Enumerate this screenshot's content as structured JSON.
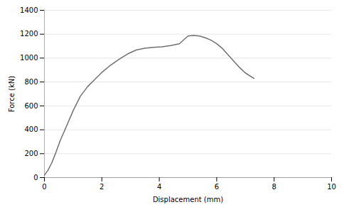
{
  "chart_data": {
    "type": "line",
    "x": [
      0,
      0.12,
      0.25,
      0.4,
      0.55,
      0.75,
      1.0,
      1.25,
      1.5,
      1.75,
      2.0,
      2.3,
      2.6,
      2.9,
      3.2,
      3.5,
      3.8,
      4.1,
      4.4,
      4.7,
      5.0,
      5.2,
      5.4,
      5.6,
      5.8,
      6.0,
      6.2,
      6.5,
      6.8,
      7.0,
      7.3
    ],
    "values": [
      20,
      60,
      120,
      210,
      310,
      420,
      560,
      680,
      760,
      820,
      880,
      940,
      990,
      1035,
      1068,
      1082,
      1090,
      1095,
      1105,
      1120,
      1185,
      1190,
      1185,
      1170,
      1150,
      1120,
      1080,
      1000,
      920,
      875,
      830
    ],
    "color": "#707070",
    "xlabel": "Displacement (mm)",
    "ylabel": "Force (kN)",
    "xlim": [
      0,
      10
    ],
    "ylim": [
      0,
      1400
    ],
    "xticks": [
      0,
      2,
      4,
      6,
      8,
      10
    ],
    "yticks": [
      0,
      200,
      400,
      600,
      800,
      1000,
      1200,
      1400
    ],
    "grid": true
  }
}
